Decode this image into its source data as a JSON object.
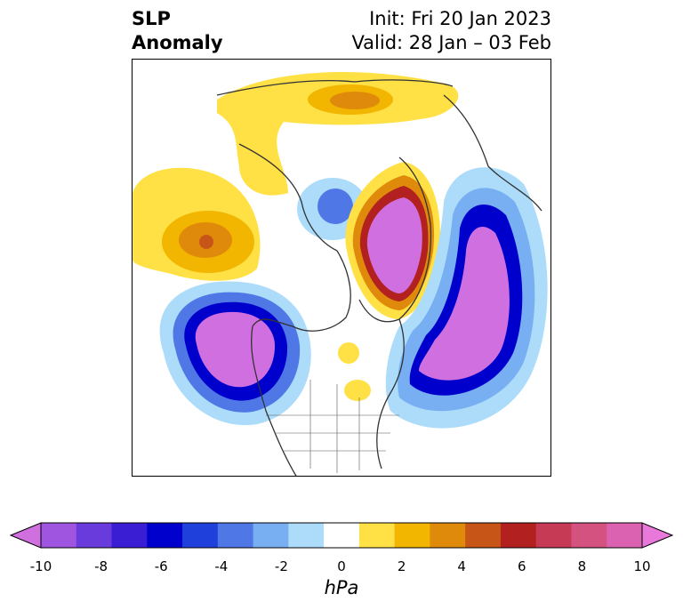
{
  "title": {
    "left_line1": "SLP",
    "left_line2": "Anomaly",
    "init": "Init: Fri 20 Jan 2023",
    "valid": "Valid: 28 Jan – 03 Feb"
  },
  "colorbar": {
    "unit": "hPa",
    "ticks": [
      "-10",
      "-8",
      "-6",
      "-4",
      "-2",
      "0",
      "2",
      "4",
      "6",
      "8",
      "10"
    ],
    "bins": [
      "#d070e0",
      "#a055e0",
      "#6a3bdc",
      "#3a1ed4",
      "#0000cc",
      "#2040dc",
      "#4f78e6",
      "#78aef2",
      "#acdcfa",
      "#ffffff",
      "#ffe045",
      "#f2b500",
      "#df8a0a",
      "#c85518",
      "#b22020",
      "#c63a55",
      "#d45280",
      "#db62b0",
      "#e878da"
    ]
  },
  "chart_data": {
    "type": "heatmap",
    "variable": "SLP Anomaly",
    "units": "hPa",
    "range": [
      -10,
      10
    ],
    "interval": 1,
    "extend": "both"
  }
}
